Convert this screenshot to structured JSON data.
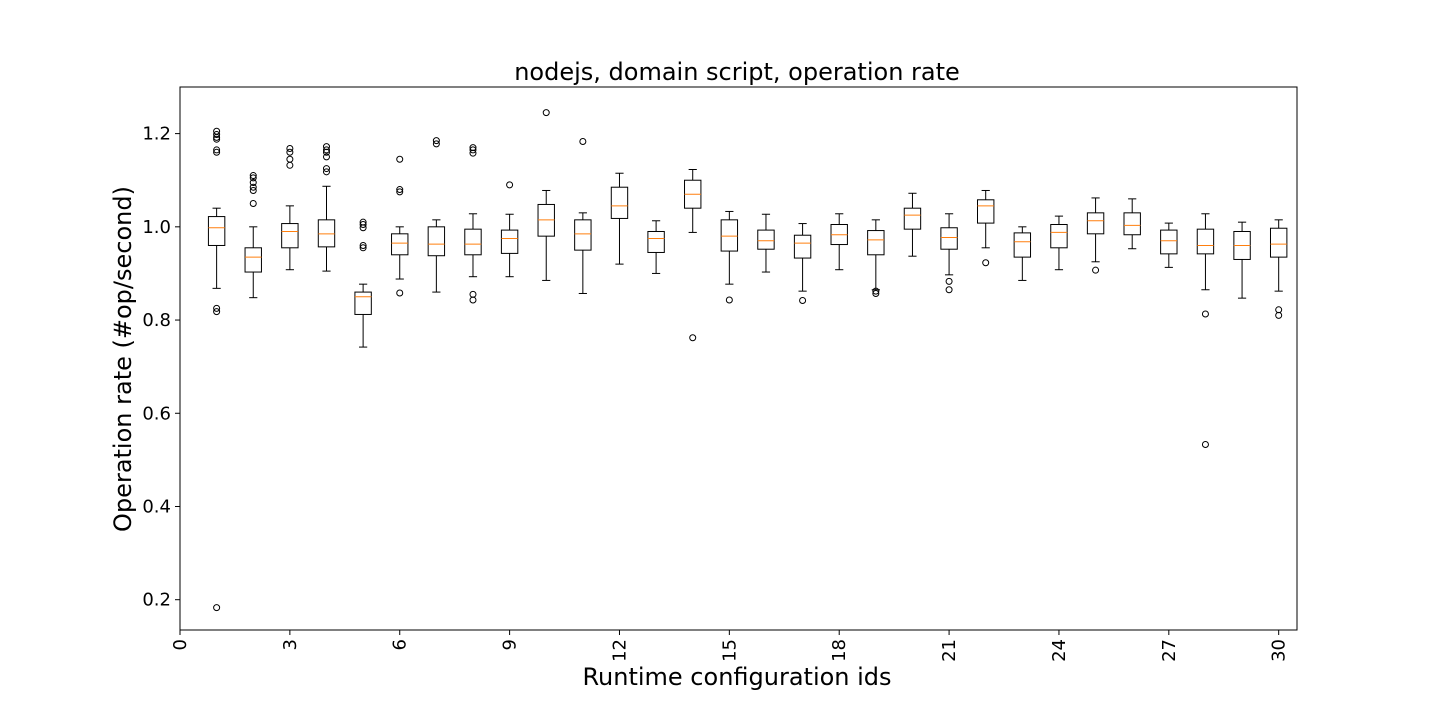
{
  "chart_data": {
    "type": "boxplot",
    "title": "nodejs, domain script, operation rate",
    "xlabel": "Runtime configuration ids",
    "ylabel": "Operation rate (#op/second)",
    "xlim": [
      0,
      30.5
    ],
    "ylim": [
      0.135,
      1.3
    ],
    "xticks": [
      0,
      3,
      6,
      9,
      12,
      15,
      18,
      21,
      24,
      27,
      30
    ],
    "yticks": [
      0.2,
      0.4,
      0.6,
      0.8,
      1.0,
      1.2
    ],
    "grid": false,
    "box_color": "#000000",
    "median_color": "#ff7f0e",
    "boxes": [
      {
        "id": 1,
        "whislo": 0.868,
        "q1": 0.96,
        "med": 0.998,
        "q3": 1.022,
        "whishi": 1.04,
        "fliers": [
          1.205,
          1.198,
          1.192,
          1.188,
          1.165,
          1.16,
          0.825,
          0.818,
          0.183
        ]
      },
      {
        "id": 2,
        "whislo": 0.848,
        "q1": 0.903,
        "med": 0.935,
        "q3": 0.955,
        "whishi": 1.0,
        "fliers": [
          1.11,
          1.105,
          1.095,
          1.085,
          1.078,
          1.05
        ]
      },
      {
        "id": 3,
        "whislo": 0.908,
        "q1": 0.955,
        "med": 0.99,
        "q3": 1.007,
        "whishi": 1.045,
        "fliers": [
          1.168,
          1.16,
          1.145,
          1.132
        ]
      },
      {
        "id": 4,
        "whislo": 0.905,
        "q1": 0.957,
        "med": 0.985,
        "q3": 1.015,
        "whishi": 1.087,
        "fliers": [
          1.172,
          1.165,
          1.16,
          1.15,
          1.125,
          1.118
        ]
      },
      {
        "id": 5,
        "whislo": 0.742,
        "q1": 0.812,
        "med": 0.85,
        "q3": 0.86,
        "whishi": 0.877,
        "fliers": [
          1.01,
          1.005,
          0.998,
          0.96,
          0.955
        ]
      },
      {
        "id": 6,
        "whislo": 0.888,
        "q1": 0.94,
        "med": 0.965,
        "q3": 0.985,
        "whishi": 1.0,
        "fliers": [
          1.145,
          1.08,
          1.075,
          0.858
        ]
      },
      {
        "id": 7,
        "whislo": 0.86,
        "q1": 0.938,
        "med": 0.963,
        "q3": 1.0,
        "whishi": 1.015,
        "fliers": [
          1.185,
          1.178
        ]
      },
      {
        "id": 8,
        "whislo": 0.893,
        "q1": 0.94,
        "med": 0.963,
        "q3": 0.995,
        "whishi": 1.028,
        "fliers": [
          1.17,
          1.165,
          1.158,
          0.855,
          0.843
        ]
      },
      {
        "id": 9,
        "whislo": 0.893,
        "q1": 0.943,
        "med": 0.975,
        "q3": 0.993,
        "whishi": 1.027,
        "fliers": [
          1.09
        ]
      },
      {
        "id": 10,
        "whislo": 0.885,
        "q1": 0.98,
        "med": 1.015,
        "q3": 1.048,
        "whishi": 1.078,
        "fliers": [
          1.245
        ]
      },
      {
        "id": 11,
        "whislo": 0.857,
        "q1": 0.95,
        "med": 0.985,
        "q3": 1.015,
        "whishi": 1.03,
        "fliers": [
          1.183
        ]
      },
      {
        "id": 12,
        "whislo": 0.92,
        "q1": 1.018,
        "med": 1.045,
        "q3": 1.085,
        "whishi": 1.115,
        "fliers": []
      },
      {
        "id": 13,
        "whislo": 0.9,
        "q1": 0.945,
        "med": 0.975,
        "q3": 0.99,
        "whishi": 1.013,
        "fliers": []
      },
      {
        "id": 14,
        "whislo": 0.988,
        "q1": 1.04,
        "med": 1.07,
        "q3": 1.1,
        "whishi": 1.123,
        "fliers": [
          0.762
        ]
      },
      {
        "id": 15,
        "whislo": 0.877,
        "q1": 0.948,
        "med": 0.98,
        "q3": 1.015,
        "whishi": 1.033,
        "fliers": [
          0.843
        ]
      },
      {
        "id": 16,
        "whislo": 0.903,
        "q1": 0.952,
        "med": 0.97,
        "q3": 0.993,
        "whishi": 1.027,
        "fliers": []
      },
      {
        "id": 17,
        "whislo": 0.862,
        "q1": 0.933,
        "med": 0.965,
        "q3": 0.982,
        "whishi": 1.007,
        "fliers": [
          0.842
        ]
      },
      {
        "id": 18,
        "whislo": 0.908,
        "q1": 0.962,
        "med": 0.983,
        "q3": 1.005,
        "whishi": 1.028,
        "fliers": []
      },
      {
        "id": 19,
        "whislo": 0.865,
        "q1": 0.94,
        "med": 0.972,
        "q3": 0.992,
        "whishi": 1.015,
        "fliers": [
          0.862,
          0.857
        ]
      },
      {
        "id": 20,
        "whislo": 0.937,
        "q1": 0.995,
        "med": 1.025,
        "q3": 1.04,
        "whishi": 1.072,
        "fliers": []
      },
      {
        "id": 21,
        "whislo": 0.897,
        "q1": 0.952,
        "med": 0.977,
        "q3": 0.998,
        "whishi": 1.028,
        "fliers": [
          0.883,
          0.865
        ]
      },
      {
        "id": 22,
        "whislo": 0.955,
        "q1": 1.008,
        "med": 1.045,
        "q3": 1.058,
        "whishi": 1.078,
        "fliers": [
          0.923
        ]
      },
      {
        "id": 23,
        "whislo": 0.885,
        "q1": 0.935,
        "med": 0.968,
        "q3": 0.987,
        "whishi": 1.0,
        "fliers": []
      },
      {
        "id": 24,
        "whislo": 0.908,
        "q1": 0.955,
        "med": 0.988,
        "q3": 1.005,
        "whishi": 1.023,
        "fliers": []
      },
      {
        "id": 25,
        "whislo": 0.925,
        "q1": 0.985,
        "med": 1.013,
        "q3": 1.03,
        "whishi": 1.062,
        "fliers": [
          0.907
        ]
      },
      {
        "id": 26,
        "whislo": 0.953,
        "q1": 0.983,
        "med": 1.003,
        "q3": 1.03,
        "whishi": 1.06,
        "fliers": []
      },
      {
        "id": 27,
        "whislo": 0.913,
        "q1": 0.942,
        "med": 0.97,
        "q3": 0.993,
        "whishi": 1.008,
        "fliers": []
      },
      {
        "id": 28,
        "whislo": 0.865,
        "q1": 0.942,
        "med": 0.96,
        "q3": 0.995,
        "whishi": 1.028,
        "fliers": [
          0.813,
          0.533
        ]
      },
      {
        "id": 29,
        "whislo": 0.847,
        "q1": 0.93,
        "med": 0.96,
        "q3": 0.99,
        "whishi": 1.01,
        "fliers": []
      },
      {
        "id": 30,
        "whislo": 0.862,
        "q1": 0.935,
        "med": 0.963,
        "q3": 0.997,
        "whishi": 1.015,
        "fliers": [
          0.822,
          0.81
        ]
      }
    ]
  }
}
